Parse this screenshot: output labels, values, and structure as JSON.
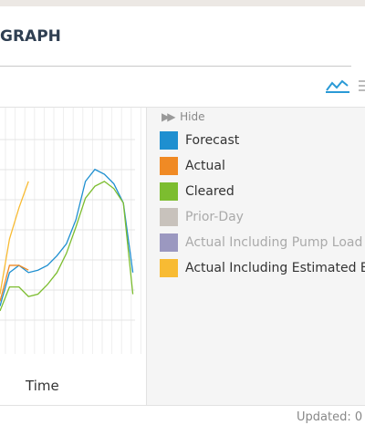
{
  "header": {
    "title": "GRAPH"
  },
  "chart_data": {
    "type": "line",
    "x_label": "Time",
    "ylim": [
      0,
      100
    ],
    "legend": {
      "toggle": "Hide"
    },
    "series": [
      {
        "name": "Forecast",
        "color": "#1e8fd0",
        "values": [
          18,
          32,
          35,
          32,
          33,
          35,
          39,
          44,
          54,
          70,
          75,
          73,
          69,
          61,
          32
        ]
      },
      {
        "name": "Actual",
        "color": "#f08a24",
        "values": [
          20,
          35,
          35,
          33
        ]
      },
      {
        "name": "Cleared",
        "color": "#7cbd2f",
        "values": [
          16,
          26,
          26,
          22,
          23,
          27,
          32,
          40,
          51,
          63,
          68,
          70,
          67,
          61,
          23
        ]
      },
      {
        "name": "Prior-Day",
        "color": "#c8c2bc",
        "values": [],
        "hidden": true
      },
      {
        "name": "Actual Including Pump Load",
        "color": "#9b98c0",
        "values": [],
        "hidden": true
      },
      {
        "name": "Actual Including Estimated Behind-the-Meter Solar",
        "color": "#f8bb33",
        "values": [
          23,
          46,
          59,
          70
        ]
      }
    ]
  },
  "footer": {
    "updated": "Updated: 0"
  }
}
